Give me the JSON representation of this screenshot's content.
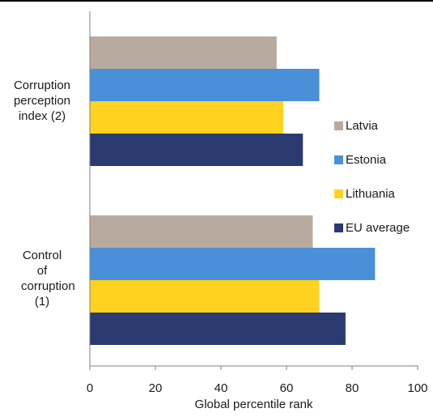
{
  "chart_data": {
    "type": "bar",
    "orientation": "horizontal",
    "categories": [
      "Corruption perception index (2)",
      "Control of corruption (1)"
    ],
    "series": [
      {
        "name": "Latvia",
        "color": "#b9aaa0",
        "values": [
          57,
          68
        ]
      },
      {
        "name": "Estonia",
        "color": "#4a90d9",
        "values": [
          70,
          87
        ]
      },
      {
        "name": "Lithuania",
        "color": "#ffd21f",
        "values": [
          59,
          70
        ]
      },
      {
        "name": "EU average",
        "color": "#2b3a70",
        "values": [
          65,
          78
        ]
      }
    ],
    "xlabel": "Global percentile rank",
    "xlim": [
      0,
      100
    ],
    "xticks": [
      "0",
      "20",
      "40",
      "60",
      "80",
      "100"
    ],
    "legend_position": "right",
    "grid": false
  }
}
